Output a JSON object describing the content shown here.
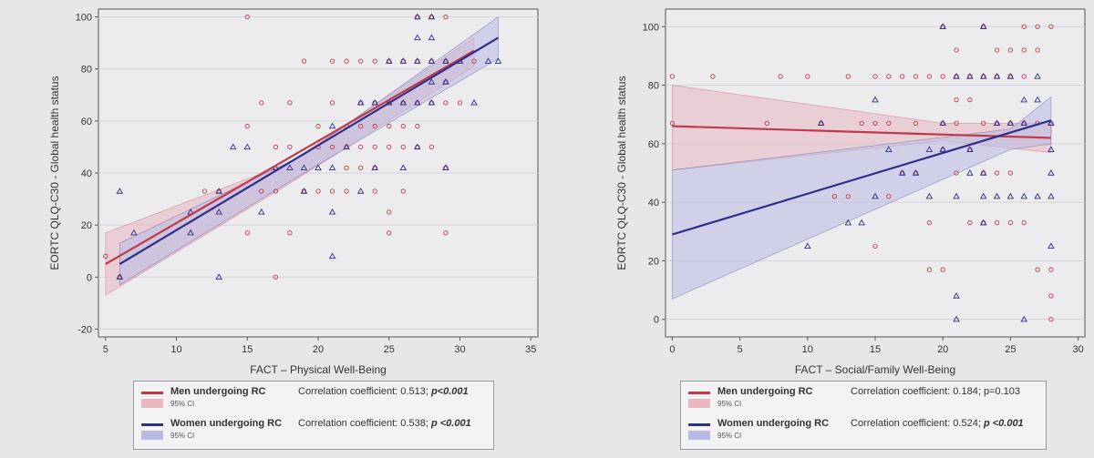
{
  "colors": {
    "men": "#c0394a",
    "women": "#2e2f8a",
    "men_ci": "#e8b7bf",
    "women_ci": "#b9bbe4",
    "grid": "#d4d4d8",
    "background": "#ececef"
  },
  "legend_left": {
    "men_label": "Men undergoing RC",
    "men_ci": "95% CI",
    "men_corr": "Correlation coefficient: 0.513;",
    "men_p": "p<0.001",
    "women_label": "Women undergoing RC",
    "women_ci": "95% CI",
    "women_corr": "Correlation coefficient: 0.538;",
    "women_p": "p <0.001"
  },
  "legend_right": {
    "men_label": "Men undergoing RC",
    "men_ci": "95% CI",
    "men_corr": "Correlation coefficient: 0.184; p=0.103",
    "women_label": "Women undergoing RC",
    "women_ci": "95% CI",
    "women_corr": "Correlation coefficient: 0.524;",
    "women_p": "p <0.001"
  },
  "chart_data": [
    {
      "type": "scatter",
      "xlabel": "FACT – Physical Well-Being",
      "ylabel": "EORTC QLQ-C30 - Global health status",
      "xlim": [
        4.5,
        35.5
      ],
      "ylim": [
        -23,
        103
      ],
      "xticks": [
        "5",
        "10",
        "15",
        "20",
        "25",
        "30",
        "35"
      ],
      "yticks": [
        "-20",
        "0",
        "20",
        "40",
        "60",
        "80",
        "100"
      ],
      "grid": true,
      "legend_placement": "below",
      "series": [
        {
          "name": "Men undergoing RC",
          "marker": "circle",
          "fit": {
            "x": [
              5,
              31
            ],
            "y": [
              5,
              87
            ]
          },
          "ci": {
            "x": [
              5,
              18,
              31
            ],
            "upper": [
              17,
              44,
              92
            ],
            "lower": [
              -7,
              36,
              81
            ]
          },
          "points": [
            [
              5,
              8
            ],
            [
              6,
              0
            ],
            [
              12,
              33
            ],
            [
              13,
              33
            ],
            [
              15,
              100
            ],
            [
              15,
              58
            ],
            [
              15,
              17
            ],
            [
              16,
              67
            ],
            [
              16,
              33
            ],
            [
              17,
              0
            ],
            [
              17,
              33
            ],
            [
              17,
              50
            ],
            [
              18,
              67
            ],
            [
              18,
              50
            ],
            [
              18,
              17
            ],
            [
              19,
              83
            ],
            [
              19,
              33
            ],
            [
              19,
              33
            ],
            [
              20,
              33
            ],
            [
              20,
              50
            ],
            [
              20,
              58
            ],
            [
              21,
              33
            ],
            [
              21,
              50
            ],
            [
              21,
              67
            ],
            [
              21,
              83
            ],
            [
              22,
              83
            ],
            [
              22,
              58
            ],
            [
              22,
              50
            ],
            [
              22,
              42
            ],
            [
              22,
              33
            ],
            [
              23,
              83
            ],
            [
              23,
              67
            ],
            [
              23,
              50
            ],
            [
              23,
              42
            ],
            [
              23,
              58
            ],
            [
              24,
              83
            ],
            [
              24,
              67
            ],
            [
              24,
              58
            ],
            [
              24,
              50
            ],
            [
              24,
              42
            ],
            [
              24,
              33
            ],
            [
              25,
              83
            ],
            [
              25,
              67
            ],
            [
              25,
              58
            ],
            [
              25,
              50
            ],
            [
              25,
              25
            ],
            [
              25,
              17
            ],
            [
              26,
              83
            ],
            [
              26,
              67
            ],
            [
              26,
              58
            ],
            [
              26,
              50
            ],
            [
              26,
              33
            ],
            [
              27,
              100
            ],
            [
              27,
              83
            ],
            [
              27,
              67
            ],
            [
              27,
              58
            ],
            [
              27,
              50
            ],
            [
              28,
              100
            ],
            [
              28,
              83
            ],
            [
              28,
              67
            ],
            [
              28,
              50
            ],
            [
              29,
              100
            ],
            [
              29,
              83
            ],
            [
              29,
              75
            ],
            [
              29,
              67
            ],
            [
              29,
              42
            ],
            [
              29,
              17
            ],
            [
              30,
              83
            ],
            [
              30,
              67
            ],
            [
              31,
              83
            ]
          ]
        },
        {
          "name": "Women undergoing RC",
          "marker": "triangle",
          "fit": {
            "x": [
              6,
              32.7
            ],
            "y": [
              5,
              92
            ]
          },
          "ci": {
            "x": [
              6,
              19,
              32.7
            ],
            "upper": [
              13,
              47,
              100
            ],
            "lower": [
              -3,
              40,
              84
            ]
          },
          "points": [
            [
              6,
              0
            ],
            [
              6,
              33
            ],
            [
              7,
              17
            ],
            [
              11,
              25
            ],
            [
              11,
              17
            ],
            [
              13,
              33
            ],
            [
              13,
              25
            ],
            [
              13,
              0
            ],
            [
              14,
              50
            ],
            [
              15,
              50
            ],
            [
              16,
              25
            ],
            [
              17,
              42
            ],
            [
              18,
              42
            ],
            [
              19,
              42
            ],
            [
              19,
              33
            ],
            [
              20,
              42
            ],
            [
              21,
              42
            ],
            [
              21,
              8
            ],
            [
              21,
              58
            ],
            [
              21,
              25
            ],
            [
              22,
              50
            ],
            [
              23,
              67
            ],
            [
              23,
              33
            ],
            [
              24,
              67
            ],
            [
              24,
              42
            ],
            [
              25,
              83
            ],
            [
              25,
              67
            ],
            [
              26,
              83
            ],
            [
              26,
              67
            ],
            [
              26,
              42
            ],
            [
              27,
              100
            ],
            [
              27,
              92
            ],
            [
              27,
              83
            ],
            [
              27,
              67
            ],
            [
              27,
              50
            ],
            [
              28,
              100
            ],
            [
              28,
              92
            ],
            [
              28,
              83
            ],
            [
              28,
              75
            ],
            [
              28,
              67
            ],
            [
              29,
              83
            ],
            [
              29,
              75
            ],
            [
              29,
              42
            ],
            [
              30,
              83
            ],
            [
              31,
              67
            ],
            [
              32,
              83
            ],
            [
              32.7,
              83
            ]
          ]
        }
      ]
    },
    {
      "type": "scatter",
      "xlabel": "FACT – Social/Family Well-Being",
      "ylabel": "EORTC QLQ-C30 - Global health status",
      "xlim": [
        -0.5,
        30.5
      ],
      "ylim": [
        -6,
        106
      ],
      "xticks": [
        "0",
        "5",
        "10",
        "15",
        "20",
        "25",
        "30"
      ],
      "yticks": [
        "0",
        "20",
        "40",
        "60",
        "80",
        "100"
      ],
      "grid": true,
      "legend_placement": "below",
      "series": [
        {
          "name": "Men undergoing RC",
          "marker": "circle",
          "fit": {
            "x": [
              0,
              28
            ],
            "y": [
              66,
              62
            ]
          },
          "ci": {
            "x": [
              0,
              20,
              28
            ],
            "upper": [
              80,
              67,
              67
            ],
            "lower": [
              51,
              61,
              57
            ]
          },
          "points": [
            [
              0,
              83
            ],
            [
              0,
              67
            ],
            [
              3,
              83
            ],
            [
              7,
              67
            ],
            [
              8,
              83
            ],
            [
              10,
              83
            ],
            [
              11,
              67
            ],
            [
              12,
              42
            ],
            [
              13,
              83
            ],
            [
              13,
              42
            ],
            [
              14,
              67
            ],
            [
              15,
              83
            ],
            [
              15,
              67
            ],
            [
              15,
              25
            ],
            [
              16,
              83
            ],
            [
              16,
              67
            ],
            [
              16,
              42
            ],
            [
              17,
              83
            ],
            [
              17,
              50
            ],
            [
              18,
              83
            ],
            [
              18,
              67
            ],
            [
              18,
              50
            ],
            [
              19,
              83
            ],
            [
              19,
              33
            ],
            [
              19,
              17
            ],
            [
              20,
              100
            ],
            [
              20,
              83
            ],
            [
              20,
              67
            ],
            [
              20,
              58
            ],
            [
              20,
              17
            ],
            [
              21,
              92
            ],
            [
              21,
              83
            ],
            [
              21,
              75
            ],
            [
              21,
              67
            ],
            [
              21,
              50
            ],
            [
              22,
              83
            ],
            [
              22,
              75
            ],
            [
              22,
              58
            ],
            [
              22,
              33
            ],
            [
              23,
              100
            ],
            [
              23,
              83
            ],
            [
              23,
              67
            ],
            [
              23,
              50
            ],
            [
              23,
              33
            ],
            [
              24,
              92
            ],
            [
              24,
              83
            ],
            [
              24,
              67
            ],
            [
              24,
              50
            ],
            [
              24,
              33
            ],
            [
              25,
              92
            ],
            [
              25,
              83
            ],
            [
              25,
              67
            ],
            [
              25,
              50
            ],
            [
              25,
              33
            ],
            [
              26,
              100
            ],
            [
              26,
              92
            ],
            [
              26,
              83
            ],
            [
              26,
              67
            ],
            [
              26,
              33
            ],
            [
              27,
              100
            ],
            [
              27,
              92
            ],
            [
              27,
              67
            ],
            [
              27,
              17
            ],
            [
              28,
              100
            ],
            [
              28,
              67
            ],
            [
              28,
              17
            ],
            [
              28,
              8
            ],
            [
              28,
              0
            ]
          ]
        },
        {
          "name": "Women undergoing RC",
          "marker": "triangle",
          "fit": {
            "x": [
              0,
              28
            ],
            "y": [
              29,
              68
            ]
          },
          "ci": {
            "x": [
              0,
              25,
              28
            ],
            "upper": [
              51,
              65,
              76
            ],
            "lower": [
              7,
              58,
              60
            ]
          },
          "points": [
            [
              10,
              25
            ],
            [
              11,
              67
            ],
            [
              13,
              33
            ],
            [
              14,
              33
            ],
            [
              15,
              75
            ],
            [
              15,
              42
            ],
            [
              16,
              58
            ],
            [
              17,
              50
            ],
            [
              18,
              50
            ],
            [
              19,
              58
            ],
            [
              19,
              42
            ],
            [
              20,
              100
            ],
            [
              20,
              67
            ],
            [
              20,
              58
            ],
            [
              21,
              83
            ],
            [
              21,
              42
            ],
            [
              21,
              8
            ],
            [
              21,
              0
            ],
            [
              22,
              83
            ],
            [
              22,
              58
            ],
            [
              22,
              50
            ],
            [
              23,
              100
            ],
            [
              23,
              83
            ],
            [
              23,
              50
            ],
            [
              23,
              42
            ],
            [
              23,
              33
            ],
            [
              24,
              83
            ],
            [
              24,
              67
            ],
            [
              24,
              42
            ],
            [
              25,
              83
            ],
            [
              25,
              67
            ],
            [
              25,
              42
            ],
            [
              26,
              75
            ],
            [
              26,
              67
            ],
            [
              26,
              42
            ],
            [
              26,
              0
            ],
            [
              27,
              83
            ],
            [
              27,
              75
            ],
            [
              27,
              42
            ],
            [
              28,
              67
            ],
            [
              28,
              58
            ],
            [
              28,
              50
            ],
            [
              28,
              42
            ],
            [
              28,
              25
            ]
          ]
        }
      ]
    }
  ]
}
